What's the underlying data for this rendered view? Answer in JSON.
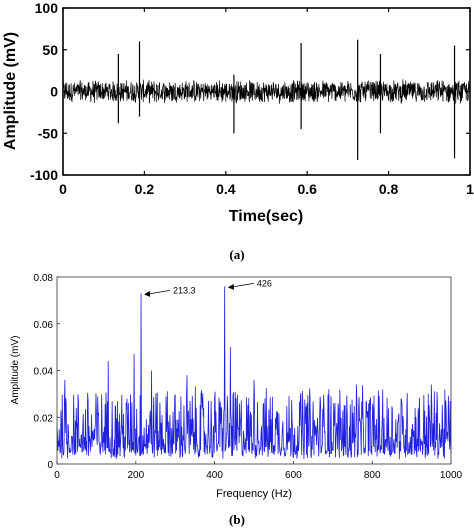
{
  "chart_data": [
    {
      "type": "line",
      "panel_caption": "(a)",
      "xlabel": "Time(sec)",
      "ylabel": "Amplitude (mV)",
      "xlim": [
        0,
        1
      ],
      "ylim": [
        -100,
        100
      ],
      "xticks": [
        0,
        0.2,
        0.4,
        0.6,
        0.8,
        1
      ],
      "xtick_labels": [
        "0",
        "0.2",
        "0.4",
        "0.6",
        "0.8",
        "1"
      ],
      "yticks": [
        -100,
        -50,
        0,
        50,
        100
      ],
      "ytick_labels": [
        "-100",
        "-50",
        "0",
        "50",
        "100"
      ],
      "noise_band_mv": [
        -15,
        15
      ],
      "spikes": [
        {
          "x": 0.136,
          "y_min": -38,
          "y_max": 45
        },
        {
          "x": 0.188,
          "y_min": -30,
          "y_max": 60
        },
        {
          "x": 0.42,
          "y_min": -50,
          "y_max": 20
        },
        {
          "x": 0.585,
          "y_min": -45,
          "y_max": 58
        },
        {
          "x": 0.724,
          "y_min": -82,
          "y_max": 62
        },
        {
          "x": 0.78,
          "y_min": -50,
          "y_max": 45
        },
        {
          "x": 0.962,
          "y_min": -80,
          "y_max": 55
        }
      ],
      "line_color": "#000000",
      "grid": false
    },
    {
      "type": "line",
      "panel_caption": "(b)",
      "xlabel": "Frequency (Hz)",
      "ylabel": "Amplitude (mV)",
      "xlim": [
        0,
        1000
      ],
      "ylim": [
        0,
        0.08
      ],
      "xticks": [
        0,
        200,
        400,
        600,
        800,
        1000
      ],
      "xtick_labels": [
        "0",
        "200",
        "400",
        "600",
        "800",
        "1000"
      ],
      "yticks": [
        0,
        0.02,
        0.04,
        0.06,
        0.08
      ],
      "ytick_labels": [
        "0",
        "0.02",
        "0.04",
        "0.06",
        "0.08"
      ],
      "noise_range_mv": [
        0.002,
        0.03
      ],
      "peaks": [
        {
          "x": 213.3,
          "y": 0.073
        },
        {
          "x": 426,
          "y": 0.076
        }
      ],
      "secondary_peaks": [
        {
          "x": 20,
          "y": 0.036
        },
        {
          "x": 130,
          "y": 0.044
        },
        {
          "x": 195,
          "y": 0.047
        },
        {
          "x": 240,
          "y": 0.04
        },
        {
          "x": 330,
          "y": 0.038
        },
        {
          "x": 440,
          "y": 0.05
        },
        {
          "x": 500,
          "y": 0.036
        },
        {
          "x": 690,
          "y": 0.032
        },
        {
          "x": 760,
          "y": 0.034
        },
        {
          "x": 950,
          "y": 0.034
        }
      ],
      "annotations": [
        {
          "text": "213.3",
          "x": 213.3,
          "y": 0.073
        },
        {
          "text": "426",
          "x": 426,
          "y": 0.076
        }
      ],
      "line_color": "#1f1fe0",
      "grid": false
    }
  ]
}
